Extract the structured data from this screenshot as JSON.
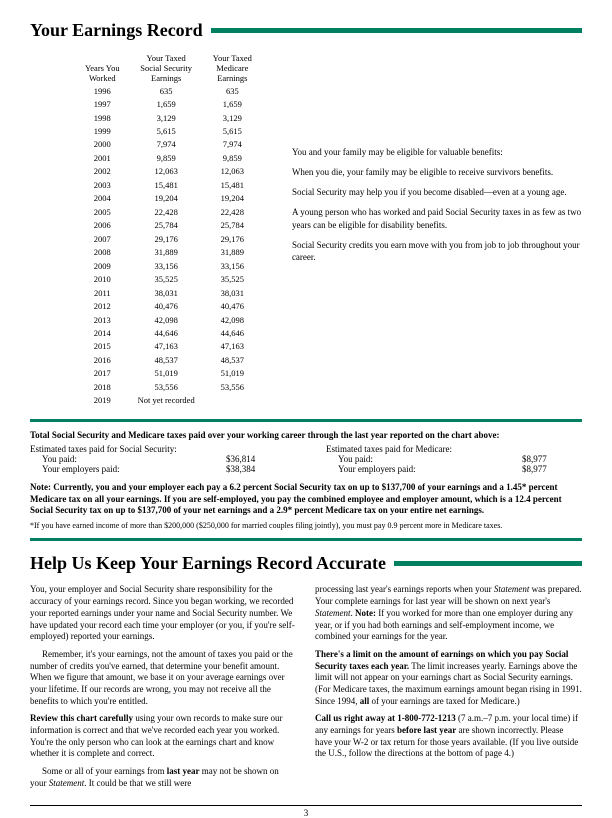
{
  "colors": {
    "accent": "#008060",
    "text": "#000000",
    "background": "#ffffff"
  },
  "title1": "Your Earnings Record",
  "earnings": {
    "headers": {
      "years": "Years You\nWorked",
      "ss": "Your Taxed\nSocial Security\nEarnings",
      "med": "Your Taxed\nMedicare\nEarnings"
    },
    "rows": [
      {
        "year": "1996",
        "ss": "635",
        "med": "635"
      },
      {
        "year": "1997",
        "ss": "1,659",
        "med": "1,659"
      },
      {
        "year": "1998",
        "ss": "3,129",
        "med": "3,129"
      },
      {
        "year": "1999",
        "ss": "5,615",
        "med": "5,615"
      },
      {
        "year": "2000",
        "ss": "7,974",
        "med": "7,974"
      },
      {
        "year": "2001",
        "ss": "9,859",
        "med": "9,859"
      },
      {
        "year": "2002",
        "ss": "12,063",
        "med": "12,063"
      },
      {
        "year": "2003",
        "ss": "15,481",
        "med": "15,481"
      },
      {
        "year": "2004",
        "ss": "19,204",
        "med": "19,204"
      },
      {
        "year": "2005",
        "ss": "22,428",
        "med": "22,428"
      },
      {
        "year": "2006",
        "ss": "25,784",
        "med": "25,784"
      },
      {
        "year": "2007",
        "ss": "29,176",
        "med": "29,176"
      },
      {
        "year": "2008",
        "ss": "31,889",
        "med": "31,889"
      },
      {
        "year": "2009",
        "ss": "33,156",
        "med": "33,156"
      },
      {
        "year": "2010",
        "ss": "35,525",
        "med": "35,525"
      },
      {
        "year": "2011",
        "ss": "38,031",
        "med": "38,031"
      },
      {
        "year": "2012",
        "ss": "40,476",
        "med": "40,476"
      },
      {
        "year": "2013",
        "ss": "42,098",
        "med": "42,098"
      },
      {
        "year": "2014",
        "ss": "44,646",
        "med": "44,646"
      },
      {
        "year": "2015",
        "ss": "47,163",
        "med": "47,163"
      },
      {
        "year": "2016",
        "ss": "48,537",
        "med": "48,537"
      },
      {
        "year": "2017",
        "ss": "51,019",
        "med": "51,019"
      },
      {
        "year": "2018",
        "ss": "53,556",
        "med": "53,556"
      },
      {
        "year": "2019",
        "ss": "Not yet recorded",
        "med": ""
      }
    ]
  },
  "benefits": [
    "You and your family may be eligible for valuable benefits:",
    "When you die, your family may be eligible to receive survivors benefits.",
    "Social Security may help you if you become disabled—even at a young age.",
    "A young person who has worked and paid Social Security taxes in as few as two years can be eligible for disability benefits.",
    "Social Security credits you earn move with you from job to job throughout your career."
  ],
  "taxBox": {
    "lead": "Total Social Security and Medicare taxes paid over your working career through the last year reported on the chart above:",
    "ssLabel": "Estimated taxes paid for Social Security:",
    "medLabel": "Estimated taxes paid for Medicare:",
    "youPaidLabel": "You paid:",
    "employersLabel": "Your employers paid:",
    "ss": {
      "you": "$36,814",
      "employer": "$38,384"
    },
    "med": {
      "you": "$8,977",
      "employer": "$8,977"
    },
    "noteBold": "Note: Currently, you and your employer each pay a 6.2 percent Social Security tax on up to $137,700 of your earnings and a 1.45* percent Medicare tax on all your earnings. If you are self-employed, you pay the combined employee and employer amount, which is a 12.4 percent Social Security tax on up to $137,700 of your net earnings and a 2.9* percent Medicare tax on your entire net earnings.",
    "footnote": "*If you have earned income of more than $200,000 ($250,000 for married couples filing jointly), you must pay 0.9 percent more in Medicare taxes."
  },
  "title2": "Help Us Keep Your Earnings Record Accurate",
  "help": {
    "left": [
      {
        "indent": false,
        "html": "You, your employer and Social Security share responsibility for the accuracy of your earnings record. Since you began working, we recorded your reported earnings under your name and Social Security number. We have updated your record each time your employer (or you, if you're self-employed) reported your earnings."
      },
      {
        "indent": true,
        "html": "Remember, it's your earnings, not the amount of taxes you paid or the number of credits you've earned, that determine your benefit amount. When we figure that amount, we base it on your average earnings over your lifetime. If our records are wrong, you may not receive all the benefits to which you're entitled."
      },
      {
        "indent": false,
        "html": "<b>Review this chart carefully</b> using your own records to make sure our information is correct and that we've recorded each year you worked. You're the only person who can look at the earnings chart and know whether it is complete and correct."
      },
      {
        "indent": true,
        "html": "Some or all of your earnings from <b>last year</b> may not be shown on your <i>Statement</i>. It could be that we still were"
      }
    ],
    "right": [
      {
        "indent": false,
        "html": "processing last year's earnings reports when your <i>Statement</i> was prepared. Your complete earnings for last year will be shown on next year's <i>Statement</i>. <b>Note:</b> If you worked for more than one employer during any year, or if you had both earnings and self-employment income, we combined your earnings for the year."
      },
      {
        "indent": false,
        "html": "<b>There's a limit on the amount of earnings on which you pay Social Security taxes each year.</b> The limit increases yearly. Earnings above the limit will not appear on your earnings chart as Social Security earnings. (For Medicare taxes, the maximum earnings amount began rising in 1991. Since 1994, <b>all</b> of your earnings are taxed for Medicare.)"
      },
      {
        "indent": false,
        "html": "<b>Call us right away at 1-800-772-1213</b> (7 a.m.–7 p.m. your local time) if any earnings for years <b>before last year</b> are shown incorrectly. Please have your W-2 or tax return for those years available. (If you live outside the U.S., follow the directions at the bottom of page 4.)"
      }
    ]
  },
  "pageNumber": "3"
}
